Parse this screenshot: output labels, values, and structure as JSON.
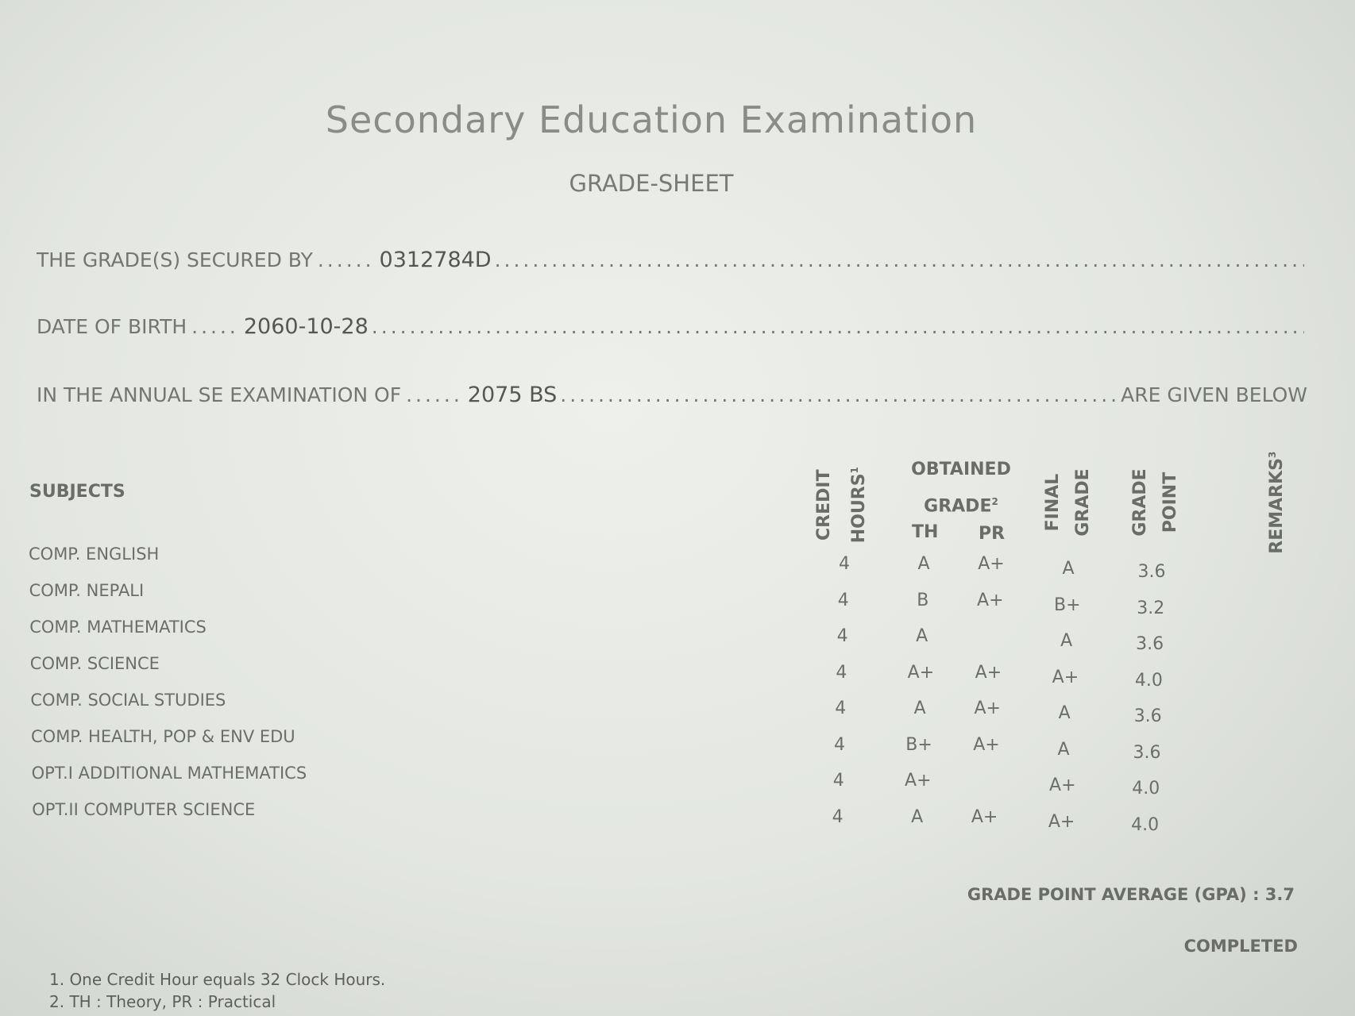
{
  "title": "Secondary Education Examination",
  "subtitle": "GRADE-SHEET",
  "fields": {
    "secured_by_label": "THE GRADE(S) SECURED BY",
    "secured_by_value": "0312784D",
    "dob_label": "DATE OF BIRTH",
    "dob_value": "2060-10-28",
    "exam_label": "IN THE ANNUAL SE EXAMINATION OF",
    "exam_value": "2075 BS",
    "exam_suffix": "ARE GIVEN BELOW"
  },
  "table": {
    "headers": {
      "subjects": "SUBJECTS",
      "credit_hours": "CREDIT HOURS",
      "credit_sup": "1",
      "obtained_grade": "OBTAINED GRADE",
      "obtained_sup": "2",
      "th": "TH",
      "pr": "PR",
      "final_grade": "FINAL GRADE",
      "grade_point": "GRADE POINT",
      "remarks": "REMARKS",
      "remarks_sup": "3"
    },
    "rows": [
      {
        "subject": "COMP. ENGLISH",
        "credit": "4",
        "th": "A",
        "pr": "A+",
        "final": "A",
        "gp": "3.6"
      },
      {
        "subject": "COMP. NEPALI",
        "credit": "4",
        "th": "B",
        "pr": "A+",
        "final": "B+",
        "gp": "3.2"
      },
      {
        "subject": "COMP. MATHEMATICS",
        "credit": "4",
        "th": "A",
        "pr": "",
        "final": "A",
        "gp": "3.6"
      },
      {
        "subject": "COMP. SCIENCE",
        "credit": "4",
        "th": "A+",
        "pr": "A+",
        "final": "A+",
        "gp": "4.0"
      },
      {
        "subject": "COMP. SOCIAL STUDIES",
        "credit": "4",
        "th": "A",
        "pr": "A+",
        "final": "A",
        "gp": "3.6"
      },
      {
        "subject": "COMP. HEALTH, POP & ENV EDU",
        "credit": "4",
        "th": "B+",
        "pr": "A+",
        "final": "A",
        "gp": "3.6"
      },
      {
        "subject": "OPT.I ADDITIONAL MATHEMATICS",
        "credit": "4",
        "th": "A+",
        "pr": "",
        "final": "A+",
        "gp": "4.0"
      },
      {
        "subject": "OPT.II COMPUTER SCIENCE",
        "credit": "4",
        "th": "A",
        "pr": "A+",
        "final": "A+",
        "gp": "4.0"
      }
    ]
  },
  "gpa": "GRADE POINT AVERAGE (GPA) : 3.7",
  "status": "COMPLETED",
  "footnotes": [
    "1. One Credit Hour equals 32 Clock Hours.",
    "2. TH : Theory, PR : Practical"
  ]
}
